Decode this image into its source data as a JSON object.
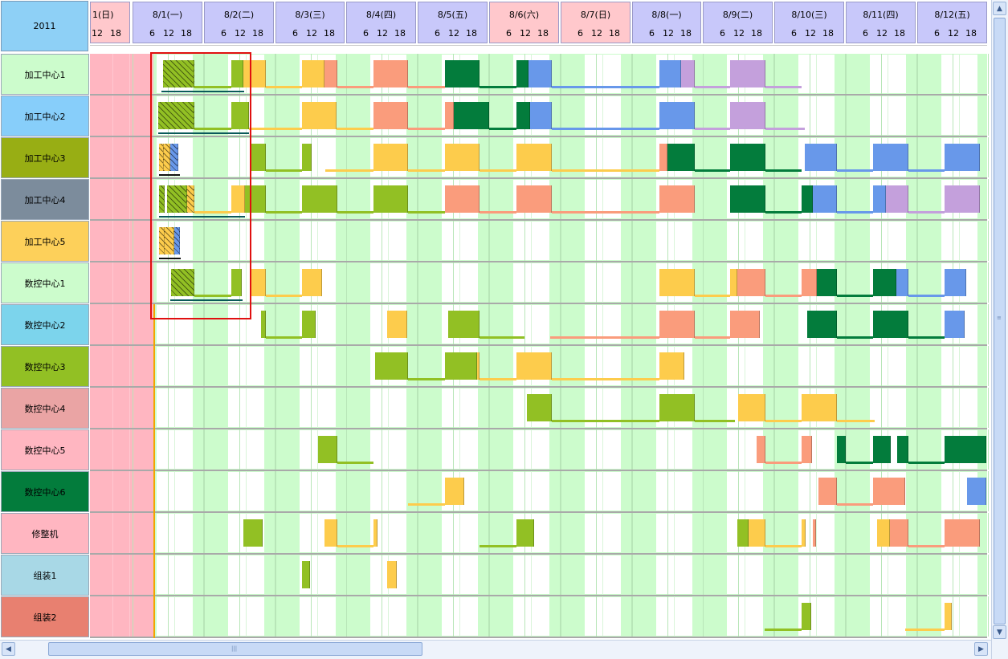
{
  "corner_label": "2011",
  "hour_ticks": [
    "6",
    "12",
    "18"
  ],
  "partial_day": {
    "label": "1(日)",
    "ticks": [
      "12",
      "18"
    ]
  },
  "days": [
    {
      "label": "8/1(一)",
      "weekend": false
    },
    {
      "label": "8/2(二)",
      "weekend": false
    },
    {
      "label": "8/3(三)",
      "weekend": false
    },
    {
      "label": "8/4(四)",
      "weekend": false
    },
    {
      "label": "8/5(五)",
      "weekend": false
    },
    {
      "label": "8/6(六)",
      "weekend": true
    },
    {
      "label": "8/7(日)",
      "weekend": true
    },
    {
      "label": "8/8(一)",
      "weekend": false
    },
    {
      "label": "8/9(二)",
      "weekend": false
    },
    {
      "label": "8/10(三)",
      "weekend": false
    },
    {
      "label": "8/11(四)",
      "weekend": false
    },
    {
      "label": "8/12(五)",
      "weekend": false
    }
  ],
  "resources": [
    {
      "name": "加工中心1",
      "color": "#ccfccc"
    },
    {
      "name": "加工中心2",
      "color": "#87cefa"
    },
    {
      "name": "加工中心3",
      "color": "#98ae14"
    },
    {
      "name": "加工中心4",
      "color": "#7c8c9c"
    },
    {
      "name": "加工中心5",
      "color": "#fdd05a"
    },
    {
      "name": "数控中心1",
      "color": "#ccfccc"
    },
    {
      "name": "数控中心2",
      "color": "#7cd4ec"
    },
    {
      "name": "数控中心3",
      "color": "#92c024"
    },
    {
      "name": "数控中心4",
      "color": "#eaa4a4"
    },
    {
      "name": "数控中心5",
      "color": "#ffb6c1"
    },
    {
      "name": "数控中心6",
      "color": "#037c3c"
    },
    {
      "name": "修整机",
      "color": "#ffb6c1"
    },
    {
      "name": "组装1",
      "color": "#a8d8e6"
    },
    {
      "name": "组装2",
      "color": "#e88070"
    }
  ],
  "colors": {
    "lime": "#92c024",
    "yellow": "#fdcc4c",
    "salmon": "#fa9c7c",
    "darkgreen": "#037c3c",
    "blue": "#6898ea",
    "purple": "#c4a0dc",
    "holiday": "#ffb6c1",
    "grid_bg": "#ccfccc",
    "selection": "#e01010"
  }
}
